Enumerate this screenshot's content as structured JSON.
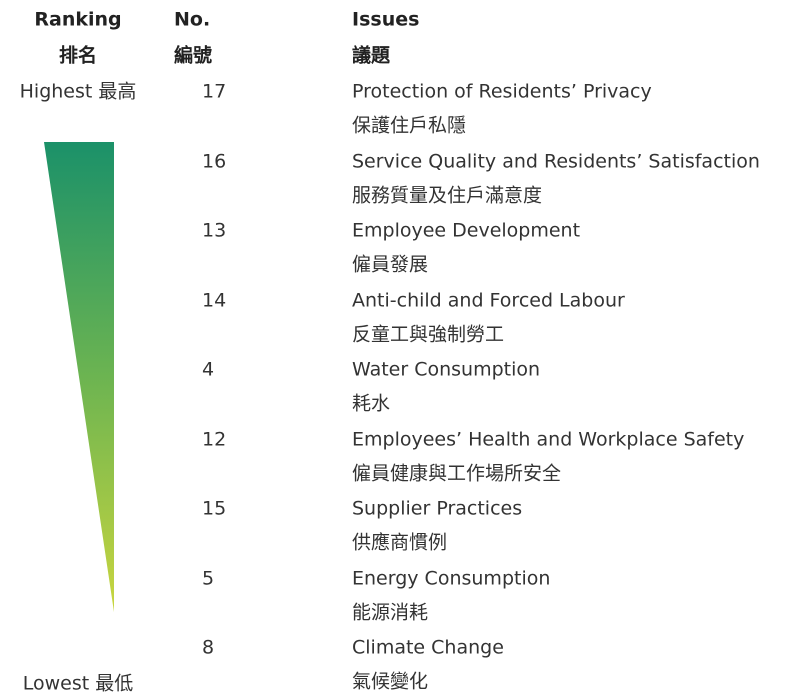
{
  "header": {
    "ranking": {
      "en": "Ranking",
      "zh": "排名"
    },
    "number": {
      "en": "No.",
      "zh": "編號"
    },
    "issues": {
      "en": "Issues",
      "zh": "議題"
    }
  },
  "scale": {
    "highest": "Highest 最高",
    "lowest": "Lowest 最低"
  },
  "table": {
    "rows": [
      {
        "no": 17,
        "en": "Protection of Residents’ Privacy",
        "zh": "保護住戶私隱"
      },
      {
        "no": 16,
        "en": "Service Quality and Residents’ Satisfaction",
        "zh": "服務質量及住戶滿意度"
      },
      {
        "no": 13,
        "en": "Employee Development",
        "zh": "僱員發展"
      },
      {
        "no": 14,
        "en": "Anti-child and Forced Labour",
        "zh": "反童工與強制勞工"
      },
      {
        "no": 4,
        "en": "Water Consumption",
        "zh": "耗水"
      },
      {
        "no": 12,
        "en": "Employees’ Health and Workplace Safety",
        "zh": "僱員健康與工作場所安全"
      },
      {
        "no": 15,
        "en": "Supplier Practices",
        "zh": "供應商慣例"
      },
      {
        "no": 5,
        "en": "Energy Consumption",
        "zh": "能源消耗"
      },
      {
        "no": 8,
        "en": "Climate Change",
        "zh": "氣候變化"
      }
    ]
  }
}
